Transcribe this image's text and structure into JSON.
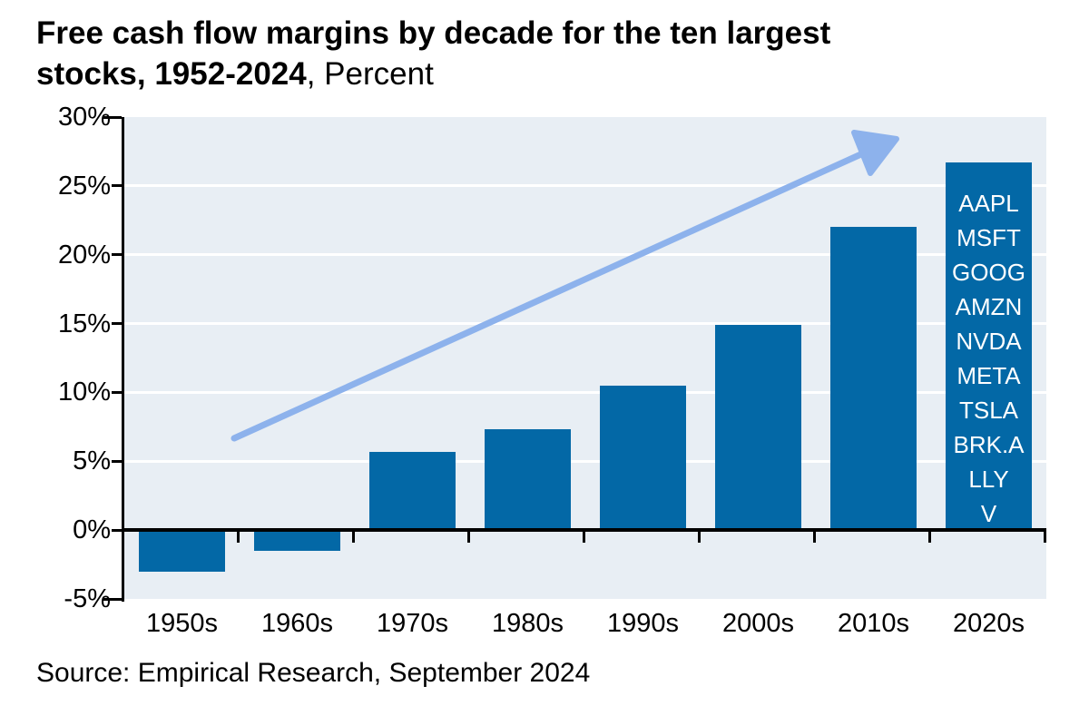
{
  "header": {
    "title_line1": "Free cash flow margins by decade for the ten largest",
    "title_line2_bold": "stocks, 1952-2024",
    "title_units": ", Percent"
  },
  "chart_data": {
    "type": "bar",
    "title": "Free cash flow margins by decade for the ten largest stocks, 1952-2024",
    "units": "Percent",
    "categories": [
      "1950s",
      "1960s",
      "1970s",
      "1980s",
      "1990s",
      "2000s",
      "2010s",
      "2020s"
    ],
    "values": [
      -3.0,
      -1.5,
      5.7,
      7.3,
      10.5,
      14.9,
      22.0,
      26.7
    ],
    "ylim": [
      -5,
      30
    ],
    "ytick_values": [
      30,
      25,
      20,
      15,
      10,
      5,
      0,
      -5
    ],
    "ytick_labels": [
      "30%",
      "25%",
      "20%",
      "15%",
      "10%",
      "5%",
      "0%",
      "-5%"
    ],
    "gridline_values": [
      25,
      20,
      15,
      10,
      5
    ],
    "grid": true,
    "legend_position": "none",
    "last_bar_tickers": [
      "AAPL",
      "MSFT",
      "GOOG",
      "AMZN",
      "NVDA",
      "META",
      "TSLA",
      "BRK.A",
      "LLY",
      "V"
    ],
    "annotation": "hand-drawn upward trend arrow from above 1950s bar to above 2010s bar",
    "colors": {
      "bar": "#0368a6",
      "plot_background": "#e8eef4",
      "gridline": "#ffffff",
      "arrow": "#8db2ec",
      "axis": "#000000",
      "ticker_text": "#ffffff"
    }
  },
  "footer": {
    "source": "Source: Empirical Research, September 2024"
  }
}
